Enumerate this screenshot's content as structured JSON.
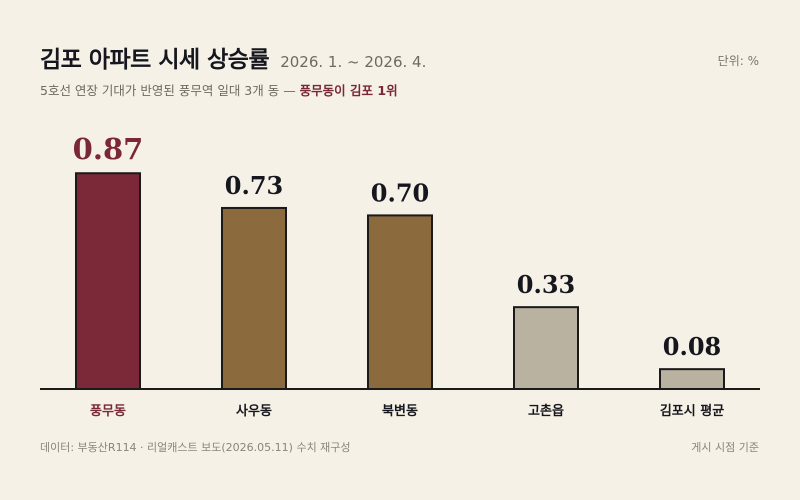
{
  "header": {
    "title": "김포 아파트 시세 상승률",
    "period": "2026. 1. ~ 2026. 4.",
    "unit": "단위: %",
    "subtitle_main": "5호선 연장 기대가 반영된 풍무역 일대 3개 동 — ",
    "subtitle_highlight": "풍무동이 김포 1위"
  },
  "footer": {
    "source": "데이터: 부동산R114 · 리얼캐스트 보도(2026.05.11) 수치 재구성",
    "note": "게시 시점 기준"
  },
  "colors": {
    "highlight": "#7b2939",
    "brown": "#8b6b3d",
    "gray": "#b9b2a1",
    "text_highlight": "#7a2838",
    "text_dark": "#16161e"
  },
  "chart_data": {
    "type": "bar",
    "categories": [
      "풍무동",
      "사우동",
      "북변동",
      "고촌읍",
      "김포시 평균"
    ],
    "values": [
      0.87,
      0.73,
      0.7,
      0.33,
      0.08
    ],
    "value_labels": [
      "0.87",
      "0.73",
      "0.70",
      "0.33",
      "0.08"
    ],
    "bar_colors": [
      "#7b2939",
      "#8b6b3d",
      "#8b6b3d",
      "#b9b2a1",
      "#b9b2a1"
    ],
    "highlight_index": 0,
    "ylim": [
      0,
      1.0
    ],
    "grid": false,
    "legend": "none"
  }
}
